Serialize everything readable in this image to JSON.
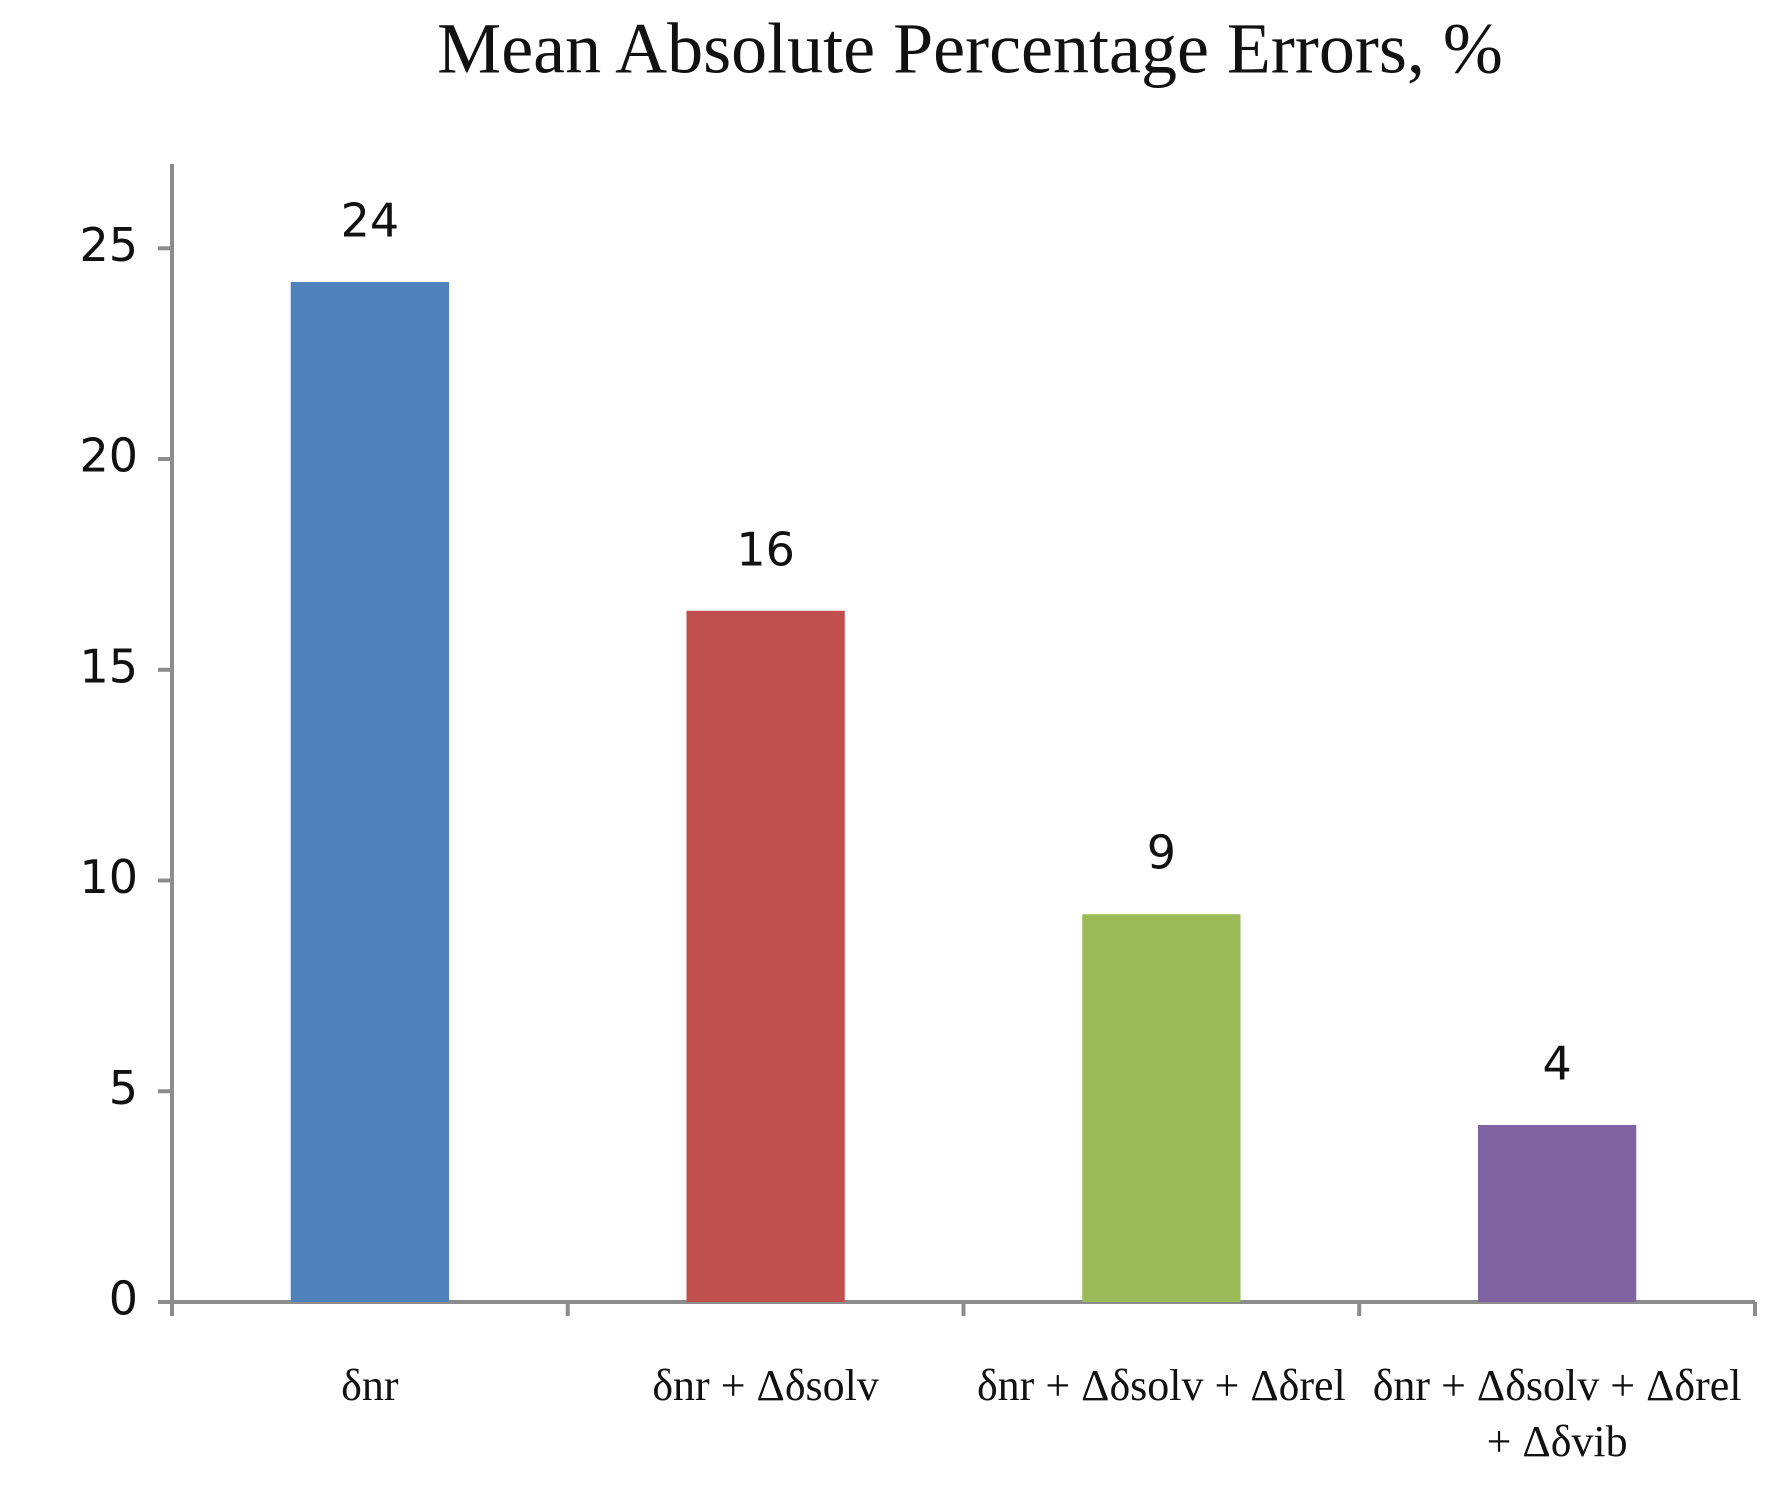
{
  "chart_data": {
    "type": "bar",
    "title": "Mean Absolute Percentage Errors, %",
    "categories": [
      "δnr",
      "δnr + Δδsolv",
      "δnr + Δδsolv + Δδrel",
      "δnr + Δδsolv + Δδrel + Δδvib"
    ],
    "values": [
      24.2,
      16.4,
      9.2,
      4.2
    ],
    "value_labels": [
      "24",
      "16",
      "9",
      "4"
    ],
    "colors": [
      "#4f81bd",
      "#c0504d",
      "#9bbb59",
      "#8064a2"
    ],
    "ylim": [
      0,
      27
    ],
    "yticks": [
      0,
      5,
      10,
      15,
      20,
      25
    ],
    "grid": false
  }
}
